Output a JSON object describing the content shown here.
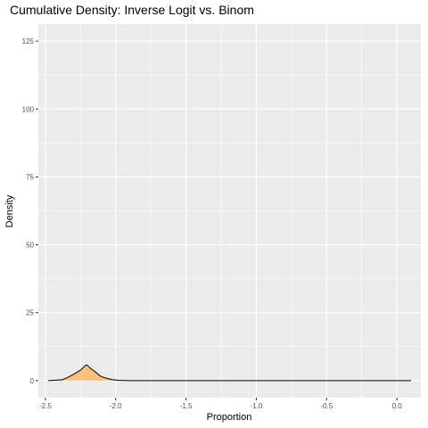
{
  "chart_data": {
    "type": "area",
    "title": "Cumulative Density: Inverse Logit vs. Binom",
    "xlabel": "Proportion",
    "ylabel": "Density",
    "xlim": [
      -2.55,
      0.17
    ],
    "ylim": [
      -6.3,
      131.3
    ],
    "x_ticks": [
      -2.5,
      -2.0,
      -1.5,
      -1.0,
      -0.5,
      0.0
    ],
    "x_tick_labels": [
      "-2.5",
      "-2.0",
      "-1.5",
      "-1.0",
      "-0.5",
      "0.0"
    ],
    "y_ticks": [
      0,
      25,
      50,
      75,
      100,
      125
    ],
    "y_tick_labels": [
      "0",
      "25",
      "50",
      "75",
      "100",
      "125"
    ],
    "grid": true,
    "fill_color": "#f8c27a",
    "line_color": "#000000",
    "panel_color": "#ebebeb",
    "series": [
      {
        "x": [
          -2.48,
          -2.38,
          -2.34,
          -2.31,
          -2.29,
          -2.27,
          -2.25,
          -2.235,
          -2.22,
          -2.21,
          -2.2,
          -2.19,
          -2.18,
          -2.16,
          -2.14,
          -2.12,
          -2.1,
          -2.06,
          -2.02,
          -1.98,
          -1.9,
          -1.7,
          -1.5,
          -1.3,
          -1.1,
          -0.9,
          -0.7,
          -0.5,
          -0.3,
          -0.1,
          0.1
        ],
        "values": [
          0,
          0.3,
          1.2,
          2.0,
          2.6,
          3.2,
          3.9,
          4.6,
          5.3,
          5.8,
          5.6,
          5.0,
          4.5,
          3.8,
          3.0,
          2.1,
          1.4,
          0.8,
          0.3,
          0.1,
          0,
          0,
          0,
          0,
          0,
          0,
          0,
          0,
          0,
          0,
          0
        ]
      }
    ]
  }
}
